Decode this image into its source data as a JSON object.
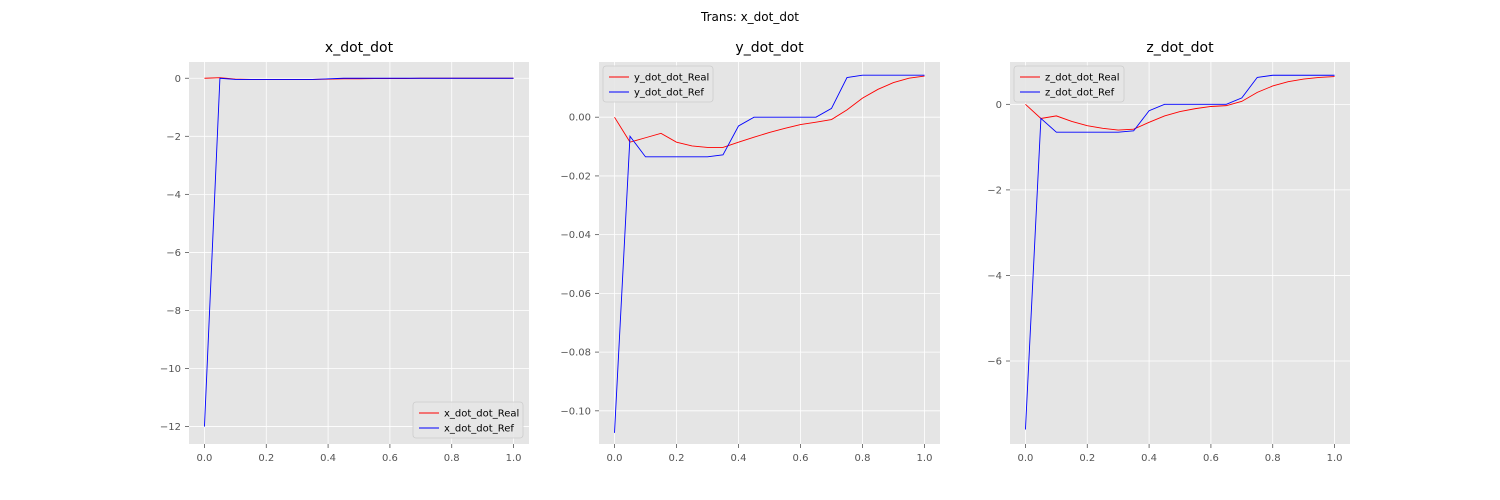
{
  "figure": {
    "suptitle": "Trans: x_dot_dot"
  },
  "colors": {
    "real": "#ff0000",
    "ref": "#0000ff",
    "panel_bg": "#e5e5e5",
    "grid": "#ffffff"
  },
  "chart_data": [
    {
      "type": "line",
      "title": "x_dot_dot",
      "xlabel": "",
      "ylabel": "",
      "xlim": [
        -0.05,
        1.05
      ],
      "ylim": [
        -12.6,
        0.56
      ],
      "xticks": [
        0.0,
        0.2,
        0.4,
        0.6,
        0.8,
        1.0
      ],
      "xtick_labels": [
        "0.0",
        "0.2",
        "0.4",
        "0.6",
        "0.8",
        "1.0"
      ],
      "yticks": [
        0,
        -2,
        -4,
        -6,
        -8,
        -10,
        -12
      ],
      "ytick_labels": [
        "0",
        "−2",
        "−4",
        "−6",
        "−8",
        "−10",
        "−12"
      ],
      "grid": true,
      "legend_loc": "lower-right",
      "series": [
        {
          "name": "x_dot_dot_Real",
          "color": "#ff0000",
          "x": [
            0.0,
            0.05,
            0.1,
            0.15,
            0.2,
            0.25,
            0.3,
            0.35,
            0.4,
            0.45,
            0.5,
            0.55,
            0.6,
            0.65,
            0.7,
            0.75,
            0.8,
            0.85,
            0.9,
            0.95,
            1.0
          ],
          "y": [
            0.0,
            0.02,
            -0.03,
            -0.04,
            -0.04,
            -0.04,
            -0.04,
            -0.04,
            -0.03,
            -0.02,
            -0.02,
            -0.01,
            -0.01,
            -0.01,
            0.0,
            0.0,
            0.0,
            0.0,
            0.0,
            0.0,
            0.0
          ]
        },
        {
          "name": "x_dot_dot_Ref",
          "color": "#0000ff",
          "x": [
            0.0,
            0.05,
            0.1,
            0.15,
            0.2,
            0.25,
            0.3,
            0.35,
            0.4,
            0.45,
            0.5,
            0.55,
            0.6,
            0.65,
            0.7,
            0.75,
            0.8,
            0.85,
            0.9,
            0.95,
            1.0
          ],
          "y": [
            -12.0,
            0.0,
            -0.04,
            -0.04,
            -0.04,
            -0.04,
            -0.04,
            -0.04,
            -0.02,
            0.0,
            0.0,
            0.0,
            0.0,
            0.0,
            0.0,
            0.0,
            0.0,
            0.0,
            0.0,
            0.0,
            0.0
          ]
        }
      ]
    },
    {
      "type": "line",
      "title": "y_dot_dot",
      "xlabel": "",
      "ylabel": "",
      "xlim": [
        -0.05,
        1.05
      ],
      "ylim": [
        -0.1113,
        0.0188
      ],
      "xticks": [
        0.0,
        0.2,
        0.4,
        0.6,
        0.8,
        1.0
      ],
      "xtick_labels": [
        "0.0",
        "0.2",
        "0.4",
        "0.6",
        "0.8",
        "1.0"
      ],
      "yticks": [
        0.0,
        -0.02,
        -0.04,
        -0.06,
        -0.08,
        -0.1
      ],
      "ytick_labels": [
        "0.00",
        "−0.02",
        "−0.04",
        "−0.06",
        "−0.08",
        "−0.10"
      ],
      "grid": true,
      "legend_loc": "upper-left",
      "series": [
        {
          "name": "y_dot_dot_Real",
          "color": "#ff0000",
          "x": [
            0.0,
            0.05,
            0.1,
            0.15,
            0.2,
            0.25,
            0.3,
            0.35,
            0.4,
            0.45,
            0.5,
            0.55,
            0.6,
            0.65,
            0.7,
            0.75,
            0.8,
            0.85,
            0.9,
            0.95,
            1.0
          ],
          "y": [
            0.0,
            -0.0085,
            -0.007,
            -0.0055,
            -0.0085,
            -0.0098,
            -0.0103,
            -0.0103,
            -0.0085,
            -0.0068,
            -0.0052,
            -0.0038,
            -0.0025,
            -0.0017,
            -0.0008,
            0.0025,
            0.0065,
            0.0095,
            0.0118,
            0.0133,
            0.014
          ]
        },
        {
          "name": "y_dot_dot_Ref",
          "color": "#0000ff",
          "x": [
            0.0,
            0.05,
            0.1,
            0.15,
            0.2,
            0.25,
            0.3,
            0.35,
            0.4,
            0.45,
            0.5,
            0.55,
            0.6,
            0.65,
            0.7,
            0.75,
            0.8,
            0.85,
            0.9,
            0.95,
            1.0
          ],
          "y": [
            -0.1075,
            -0.0065,
            -0.0135,
            -0.0135,
            -0.0135,
            -0.0135,
            -0.0135,
            -0.0128,
            -0.003,
            0.0,
            0.0,
            0.0,
            0.0,
            0.0,
            0.003,
            0.0135,
            0.0143,
            0.0143,
            0.0143,
            0.0143,
            0.0143
          ]
        }
      ]
    },
    {
      "type": "line",
      "title": "z_dot_dot",
      "xlabel": "",
      "ylabel": "",
      "xlim": [
        -0.05,
        1.05
      ],
      "ylim": [
        -7.94,
        0.99
      ],
      "xticks": [
        0.0,
        0.2,
        0.4,
        0.6,
        0.8,
        1.0
      ],
      "xtick_labels": [
        "0.0",
        "0.2",
        "0.4",
        "0.6",
        "0.8",
        "1.0"
      ],
      "yticks": [
        0,
        -2,
        -4,
        -6
      ],
      "ytick_labels": [
        "0",
        "−2",
        "−4",
        "−6"
      ],
      "grid": true,
      "legend_loc": "upper-left",
      "series": [
        {
          "name": "z_dot_dot_Real",
          "color": "#ff0000",
          "x": [
            0.0,
            0.05,
            0.1,
            0.15,
            0.2,
            0.25,
            0.3,
            0.35,
            0.4,
            0.45,
            0.5,
            0.55,
            0.6,
            0.65,
            0.7,
            0.75,
            0.8,
            0.85,
            0.9,
            0.95,
            1.0
          ],
          "y": [
            0.0,
            -0.33,
            -0.27,
            -0.4,
            -0.5,
            -0.56,
            -0.6,
            -0.58,
            -0.42,
            -0.27,
            -0.17,
            -0.1,
            -0.05,
            -0.03,
            0.07,
            0.28,
            0.43,
            0.53,
            0.59,
            0.63,
            0.65
          ]
        },
        {
          "name": "z_dot_dot_Ref",
          "color": "#0000ff",
          "x": [
            0.0,
            0.05,
            0.1,
            0.15,
            0.2,
            0.25,
            0.3,
            0.35,
            0.4,
            0.45,
            0.5,
            0.55,
            0.6,
            0.65,
            0.7,
            0.75,
            0.8,
            0.85,
            0.9,
            0.95,
            1.0
          ],
          "y": [
            -7.6,
            -0.33,
            -0.65,
            -0.65,
            -0.65,
            -0.65,
            -0.65,
            -0.62,
            -0.15,
            0.0,
            0.0,
            0.0,
            0.0,
            0.0,
            0.15,
            0.63,
            0.68,
            0.68,
            0.68,
            0.68,
            0.68
          ]
        }
      ]
    }
  ]
}
